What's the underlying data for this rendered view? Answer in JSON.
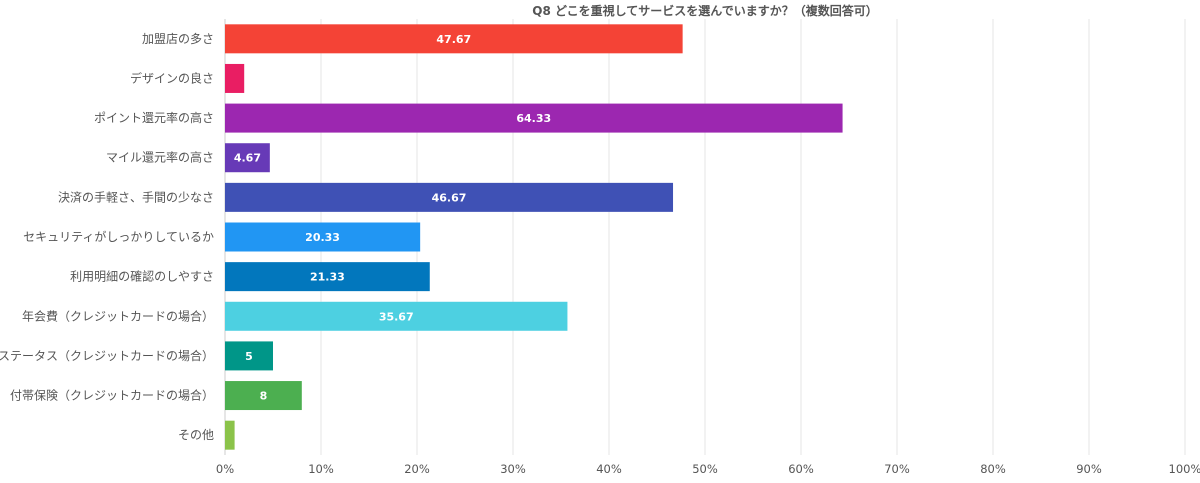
{
  "chart_data": {
    "type": "bar",
    "orientation": "horizontal",
    "title": "Q8 どこを重視してサービスを選んでいますか？（複数回答可）",
    "categories": [
      "加盟店の多さ",
      "デザインの良さ",
      "ポイント還元率の高さ",
      "マイル還元率の高さ",
      "決済の手軽さ、手間の少なさ",
      "セキュリティがしっかりしているか",
      "利用明細の確認のしやすさ",
      "年会費（クレジットカードの場合）",
      "ステータス（クレジットカードの場合）",
      "付帯保険（クレジットカードの場合）",
      "その他"
    ],
    "values": [
      47.67,
      2,
      64.33,
      4.67,
      46.67,
      20.33,
      21.33,
      35.67,
      5,
      8,
      1
    ],
    "data_labels": [
      "47.67",
      "",
      "64.33",
      "4.67",
      "46.67",
      "20.33",
      "21.33",
      "35.67",
      "5",
      "8",
      ""
    ],
    "colors": [
      "#f44336",
      "#e91e63",
      "#9c27b0",
      "#673ab7",
      "#3f51b5",
      "#2196f3",
      "#0277bd",
      "#4dd0e1",
      "#009688",
      "#4caf50",
      "#8bc34a"
    ],
    "xlim": [
      0,
      100
    ],
    "x_ticks": [
      "0%",
      "10%",
      "20%",
      "30%",
      "40%",
      "50%",
      "60%",
      "70%",
      "80%",
      "90%",
      "100%"
    ],
    "grid": true,
    "xlabel": "",
    "ylabel": ""
  }
}
